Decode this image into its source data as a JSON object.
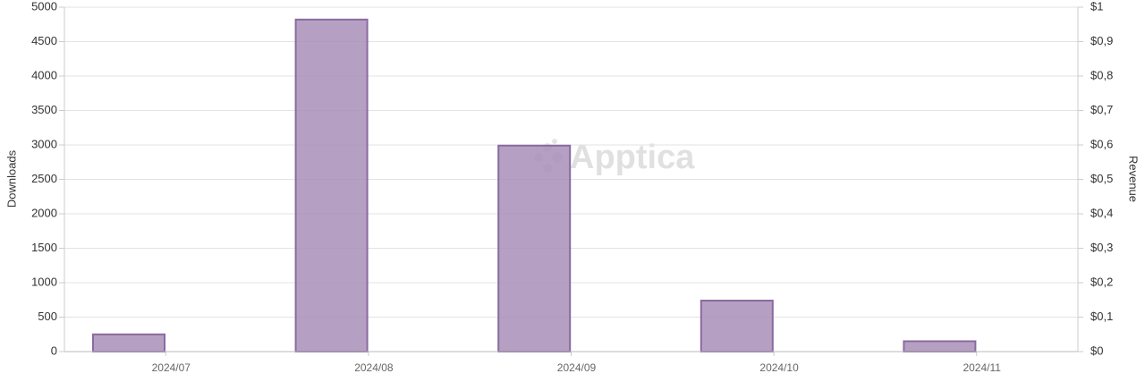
{
  "chart_data": {
    "type": "bar",
    "watermark": "Apptica",
    "y_label": "Downloads",
    "y2_label": "Revenue",
    "categories": [
      "2024/07",
      "2024/08",
      "2024/09",
      "2024/10",
      "2024/11"
    ],
    "series": [
      {
        "name": "Downloads",
        "color": "#a88fba",
        "values": [
          250,
          4820,
          2990,
          740,
          150
        ]
      }
    ],
    "ylim": [
      0,
      5000
    ],
    "yticks": [
      0,
      500,
      1000,
      1500,
      2000,
      2500,
      3000,
      3500,
      4000,
      4500,
      5000
    ],
    "y2lim": [
      0,
      1
    ],
    "y2ticks": [
      {
        "value": 0,
        "label": "$0"
      },
      {
        "value": 0.1,
        "label": "$0,1"
      },
      {
        "value": 0.2,
        "label": "$0,2"
      },
      {
        "value": 0.3,
        "label": "$0,3"
      },
      {
        "value": 0.4,
        "label": "$0,4"
      },
      {
        "value": 0.5,
        "label": "$0,5"
      },
      {
        "value": 0.6,
        "label": "$0,6"
      },
      {
        "value": 0.7,
        "label": "$0,7"
      },
      {
        "value": 0.8,
        "label": "$0,8"
      },
      {
        "value": 0.9,
        "label": "$0,9"
      },
      {
        "value": 1,
        "label": "$1"
      }
    ],
    "grid": true
  }
}
